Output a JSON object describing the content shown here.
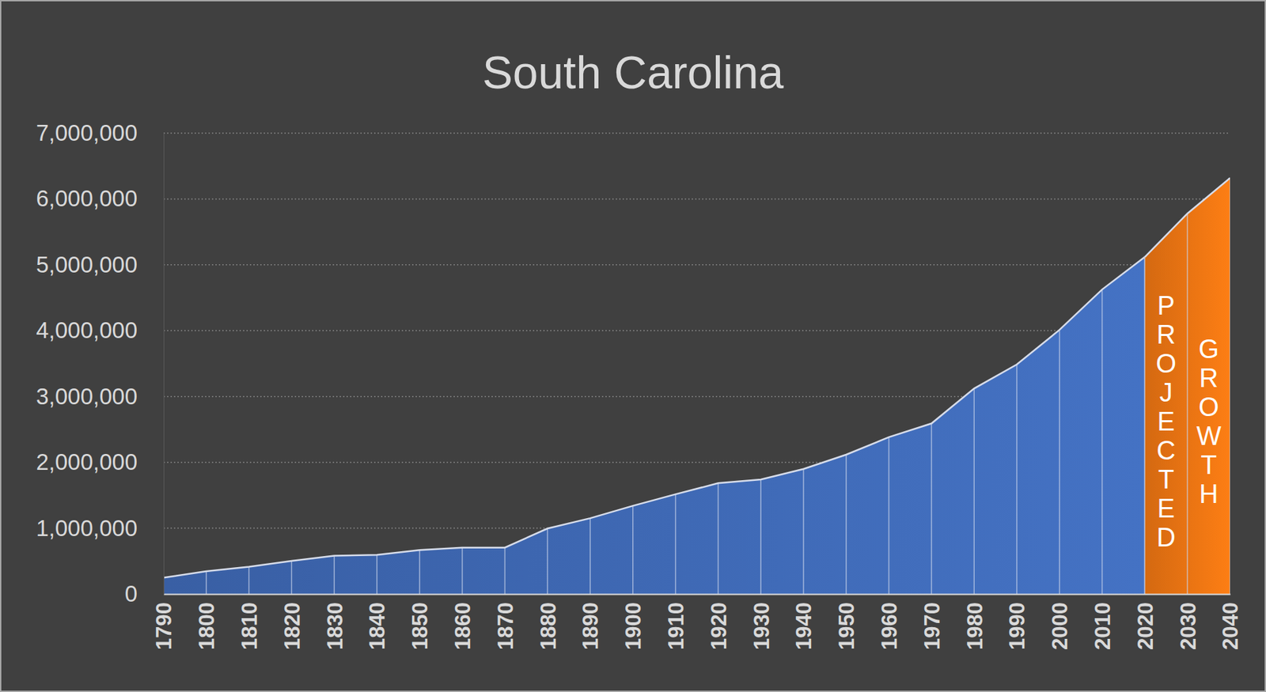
{
  "chart_data": {
    "type": "area",
    "title": "South Carolina",
    "x": [
      1790,
      1800,
      1810,
      1820,
      1830,
      1840,
      1850,
      1860,
      1870,
      1880,
      1890,
      1900,
      1910,
      1920,
      1930,
      1940,
      1950,
      1960,
      1970,
      1980,
      1990,
      2000,
      2010,
      2020,
      2030,
      2040
    ],
    "series": [
      {
        "color": "#4472c4",
        "values": [
          249073,
          345591,
          415115,
          502741,
          581185,
          594398,
          668507,
          703708,
          705606,
          995577,
          1151149,
          1340316,
          1515400,
          1683724,
          1738765,
          1899804,
          2117027,
          2382594,
          2590516,
          3121820,
          3486703,
          4012012,
          4625364,
          5118425,
          null,
          null
        ]
      },
      {
        "color": "#fd7e14",
        "values": [
          null,
          null,
          null,
          null,
          null,
          null,
          null,
          null,
          null,
          null,
          null,
          null,
          null,
          null,
          null,
          null,
          null,
          null,
          null,
          null,
          null,
          null,
          null,
          5118425,
          5780000,
          6320000
        ]
      }
    ],
    "annotations": [
      "PROJECTED",
      "GROWTH"
    ],
    "xlim": [
      1790,
      2040
    ],
    "xticks": [
      1790,
      1800,
      1810,
      1820,
      1830,
      1840,
      1850,
      1860,
      1870,
      1880,
      1890,
      1900,
      1910,
      1920,
      1930,
      1940,
      1950,
      1960,
      1970,
      1980,
      1990,
      2000,
      2010,
      2020,
      2030,
      2040
    ],
    "ylim": [
      0,
      7000000
    ],
    "yticks": [
      0,
      {
        "value": 1000000,
        "label": "1,000,000"
      },
      {
        "value": 2000000,
        "label": "2,000,000"
      },
      {
        "value": 3000000,
        "label": "3,000,000"
      },
      {
        "value": 4000000,
        "label": "4,000,000"
      },
      {
        "value": 5000000,
        "label": "5,000,000"
      },
      {
        "value": 6000000,
        "label": "6,000,000"
      },
      {
        "value": 7000000,
        "label": "7,000,000"
      }
    ],
    "grid": true
  }
}
